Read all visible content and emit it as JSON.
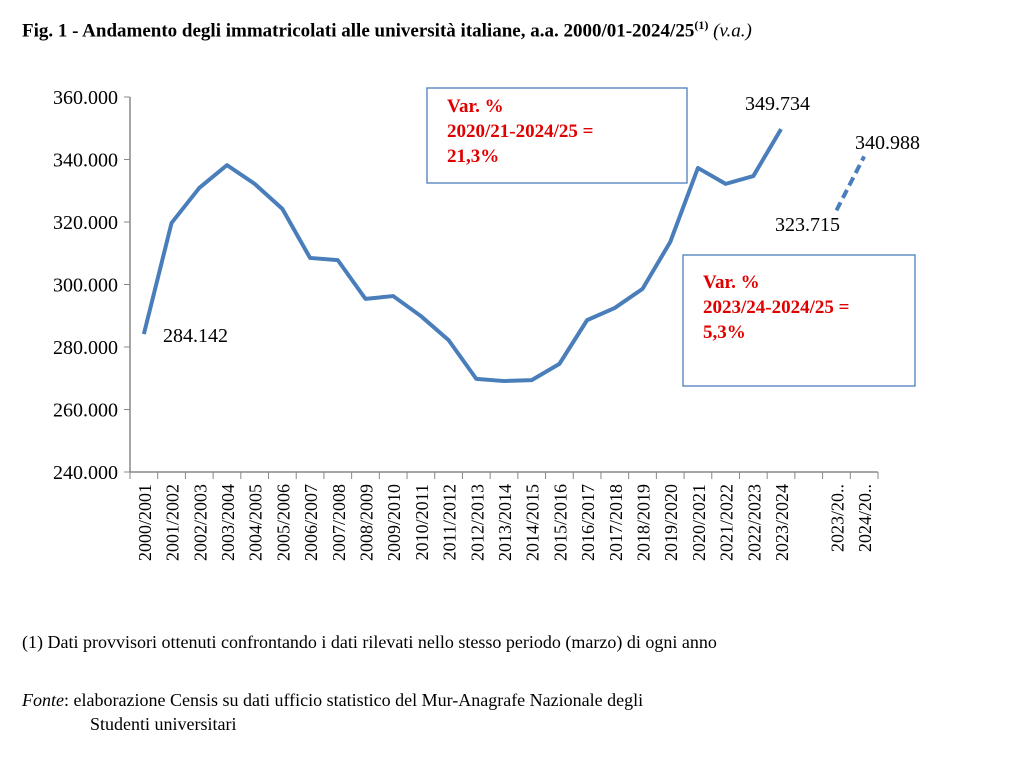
{
  "title": {
    "main": "Fig. 1 - Andamento degli immatricolati alle università italiane, a.a. 2000/01-2024/25",
    "sup": "(1)",
    "unit": "(v.a.)"
  },
  "chart_data": {
    "type": "line",
    "ylim": [
      240000,
      360000
    ],
    "yticks": [
      "240.000",
      "260.000",
      "280.000",
      "300.000",
      "320.000",
      "340.000",
      "360.000"
    ],
    "categories": [
      "2000/2001",
      "2001/2002",
      "2002/2003",
      "2003/2004",
      "2004/2005",
      "2005/2006",
      "2006/2007",
      "2007/2008",
      "2008/2009",
      "2009/2010",
      "2010/2011",
      "2011/2012",
      "2012/2013",
      "2013/2014",
      "2014/2015",
      "2015/2016",
      "2016/2017",
      "2017/2018",
      "2018/2019",
      "2019/2020",
      "2020/2021",
      "2021/2022",
      "2022/2023",
      "2023/2024",
      "",
      "2023/20..",
      "2024/20.."
    ],
    "series": [
      {
        "style": "solid",
        "values": [
          284142,
          319700,
          330900,
          338200,
          332200,
          324200,
          308500,
          307800,
          295400,
          296300,
          289900,
          282200,
          269800,
          269100,
          269400,
          274600,
          288600,
          292500,
          298600,
          313600,
          337300,
          332200,
          334700,
          349734,
          null,
          null,
          null
        ]
      },
      {
        "style": "dashed",
        "values": [
          null,
          null,
          null,
          null,
          null,
          null,
          null,
          null,
          null,
          null,
          null,
          null,
          null,
          null,
          null,
          null,
          null,
          null,
          null,
          null,
          null,
          null,
          null,
          null,
          null,
          323715,
          340988
        ]
      }
    ],
    "data_labels": [
      "284.142",
      "349.734",
      "323.715",
      "340.988"
    ],
    "annotations": [
      {
        "lines": [
          "Var. %",
          "2020/21-2024/25 =",
          "21,3%"
        ]
      },
      {
        "lines": [
          "Var. %",
          "2023/24-2024/25 =",
          "5,3%"
        ]
      }
    ],
    "line_color": "#4a7ebb",
    "annotation_color": "#e00000",
    "box_border": "#4a7ebb",
    "grid": false,
    "legend": "none"
  },
  "footnote": "(1) Dati provvisori ottenuti confrontando i dati rilevati nello stesso periodo (marzo) di ogni anno",
  "fonte": {
    "label": "Fonte",
    "text": ": elaborazione Censis su dati ufficio statistico del Mur-Anagrafe Nazionale degli",
    "text2": "Studenti universitari"
  }
}
